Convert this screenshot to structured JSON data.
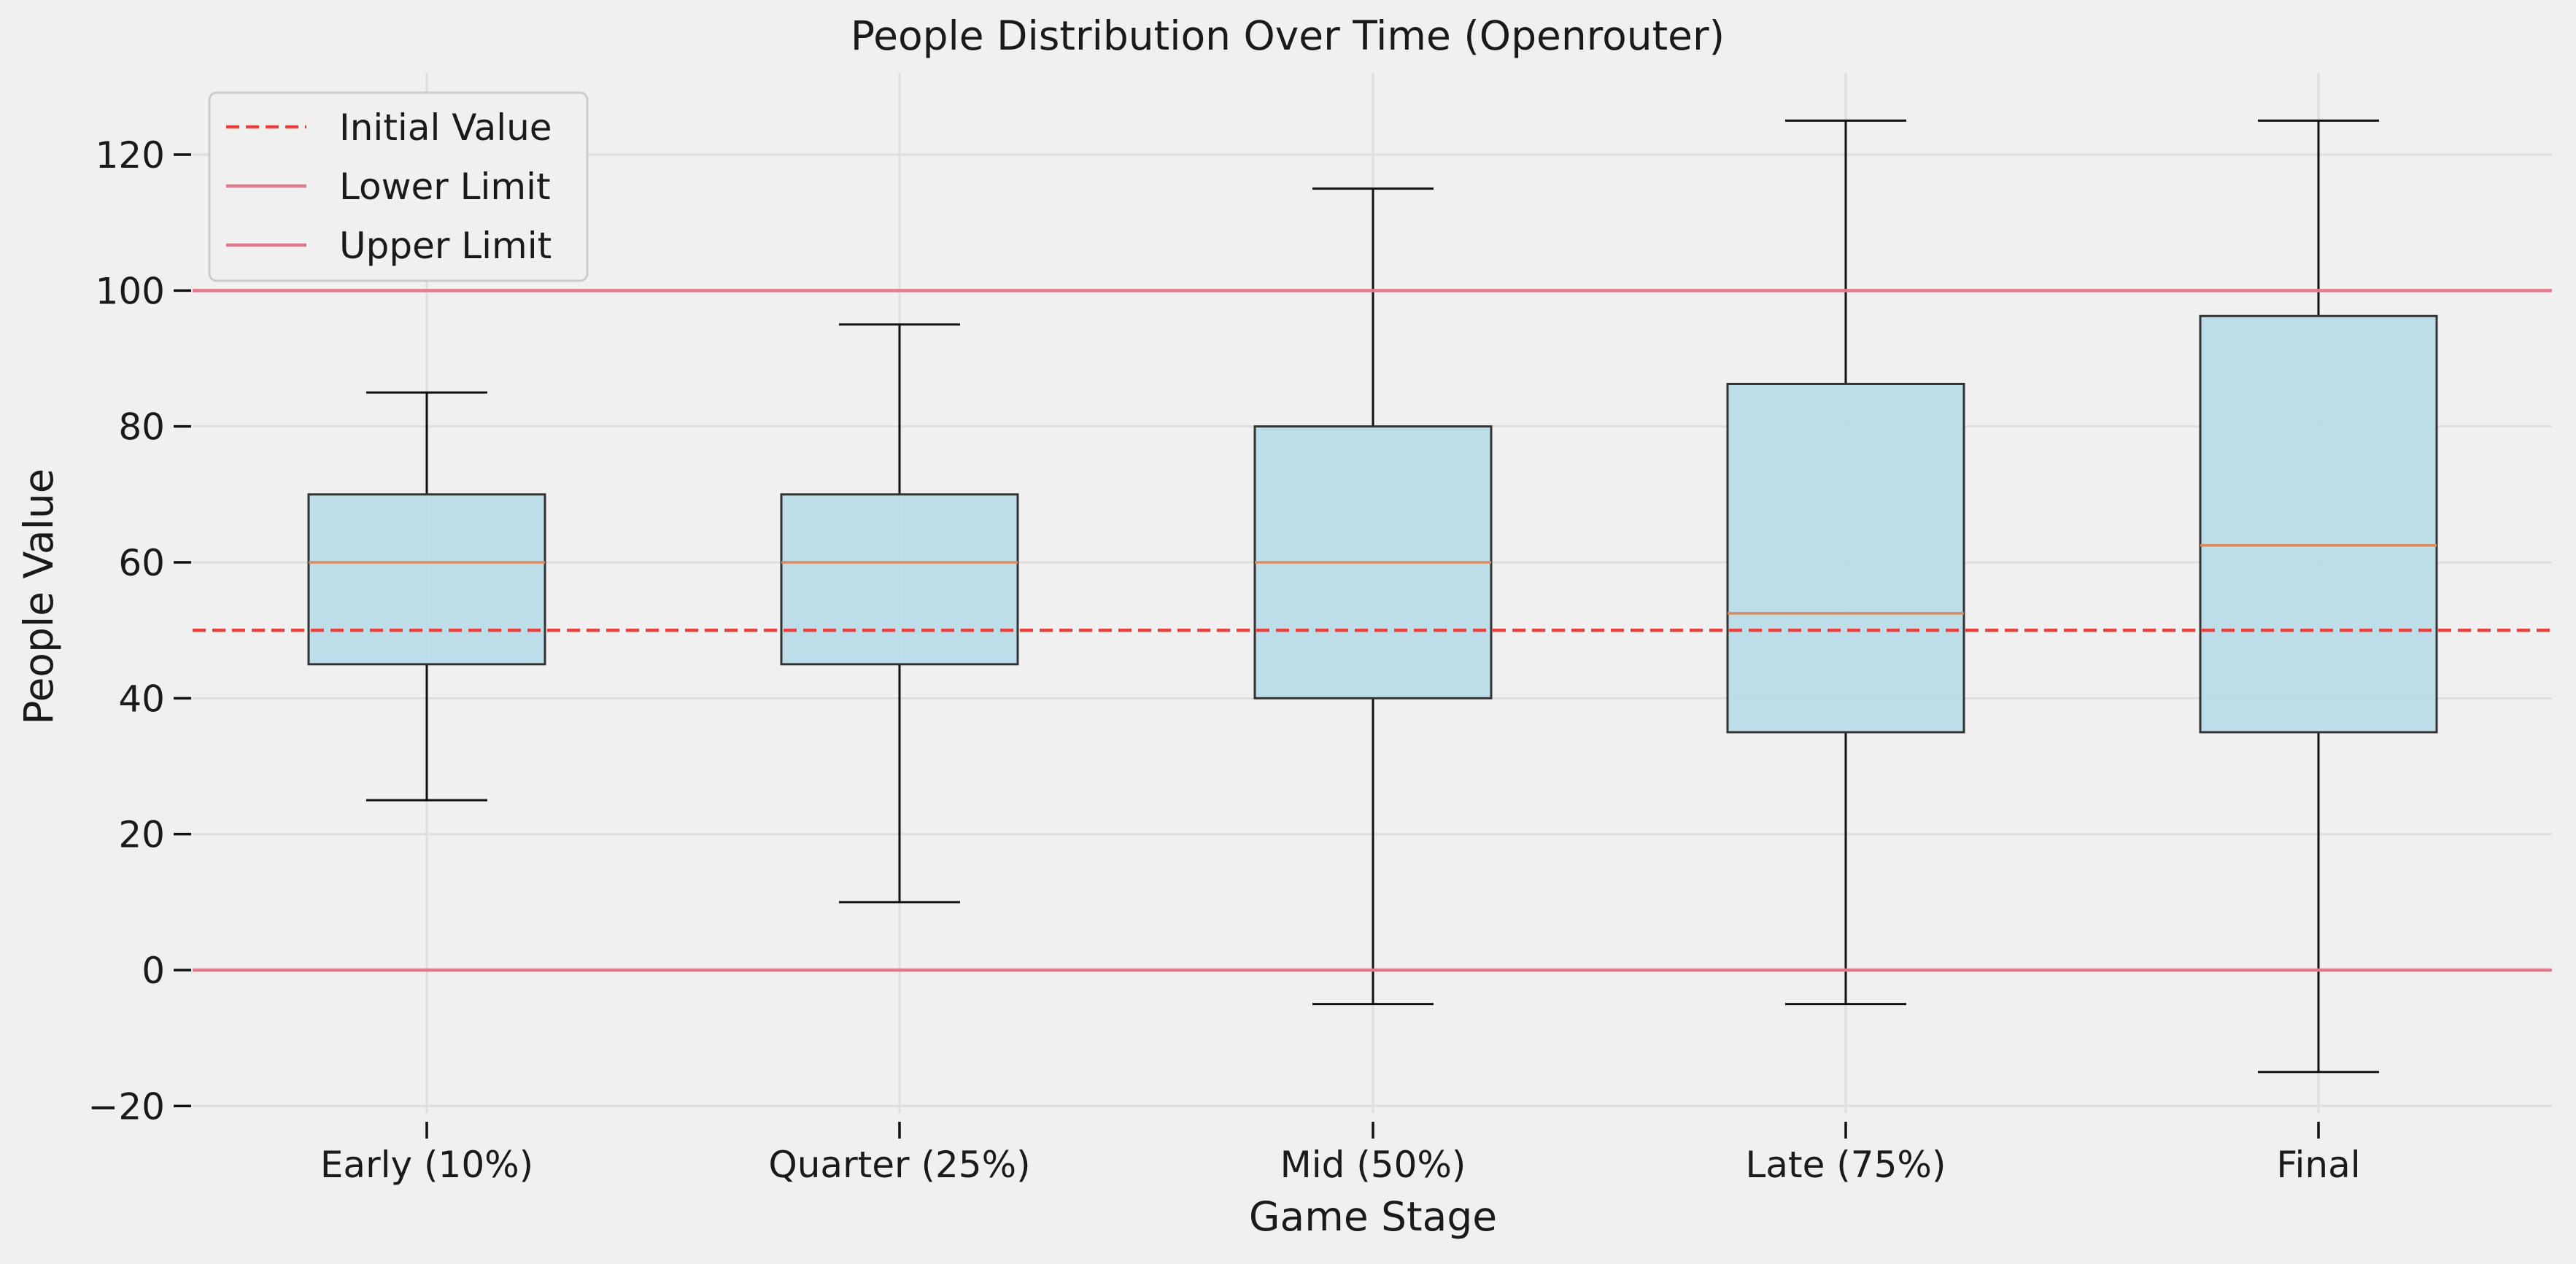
{
  "chart_data": {
    "type": "box",
    "title": "People Distribution Over Time (Openrouter)",
    "xlabel": "Game Stage",
    "ylabel": "People Value",
    "ylim": [
      -22,
      132
    ],
    "yticks": [
      -20,
      0,
      20,
      40,
      60,
      80,
      100,
      120
    ],
    "ytick_labels": [
      "−20",
      "0",
      "20",
      "40",
      "60",
      "80",
      "100",
      "120"
    ],
    "grid": true,
    "categories": [
      "Early (10%)",
      "Quarter (25%)",
      "Mid (50%)",
      "Late (75%)",
      "Final"
    ],
    "boxes": [
      {
        "min": 25,
        "q1": 45,
        "median": 60,
        "q3": 70,
        "max": 85
      },
      {
        "min": 10,
        "q1": 45,
        "median": 60,
        "q3": 70,
        "max": 95
      },
      {
        "min": -5,
        "q1": 40,
        "median": 60,
        "q3": 80,
        "max": 115
      },
      {
        "min": -5,
        "q1": 35,
        "median": 52.5,
        "q3": 86.25,
        "max": 125
      },
      {
        "min": -15,
        "q1": 35,
        "median": 62.5,
        "q3": 96.25,
        "max": 125
      }
    ],
    "reference_lines": [
      {
        "name": "Initial Value",
        "y": 50,
        "style": "dashed",
        "color": "#e8413e"
      },
      {
        "name": "Lower Limit",
        "y": 0,
        "style": "solid",
        "color": "#e07a8c"
      },
      {
        "name": "Upper Limit",
        "y": 100,
        "style": "solid",
        "color": "#e07a8c"
      }
    ],
    "box_fill": "#b9dce7",
    "box_edge": "#333333",
    "median_color": "#d98b5f",
    "legend_position": "upper-left"
  }
}
